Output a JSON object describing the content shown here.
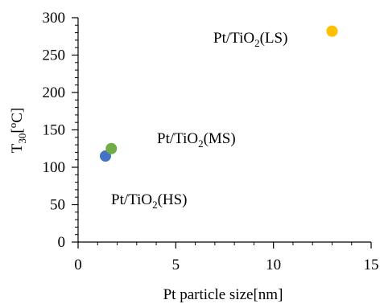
{
  "chart_data": {
    "type": "scatter",
    "title": "",
    "xlabel": "Pt particle size[nm]",
    "ylabel": {
      "main": "T",
      "sub": "30",
      "rest": "[",
      "sup": "o",
      "unit": "C]"
    },
    "xlim": [
      0,
      15
    ],
    "ylim": [
      0,
      300
    ],
    "x_major_ticks": [
      0,
      5,
      10,
      15
    ],
    "y_major_ticks": [
      0,
      50,
      100,
      150,
      200,
      250,
      300
    ],
    "x_minor_step": 1,
    "y_minor_step": 10,
    "grid": false,
    "legend": "none",
    "points": [
      {
        "x": 1.4,
        "y": 115,
        "color": "#4472C4"
      },
      {
        "x": 1.7,
        "y": 125,
        "color": "#70AD47"
      },
      {
        "x": 13.0,
        "y": 282,
        "color": "#FFC000"
      }
    ],
    "annotations": [
      {
        "id": "ls",
        "pre": "Pt/TiO",
        "sub": "2",
        "post": "(LS)"
      },
      {
        "id": "ms",
        "pre": "Pt/TiO",
        "sub": "2",
        "post": "(MS)"
      },
      {
        "id": "hs",
        "pre": "Pt/TiO",
        "sub": "2",
        "post": "(HS)"
      }
    ]
  }
}
